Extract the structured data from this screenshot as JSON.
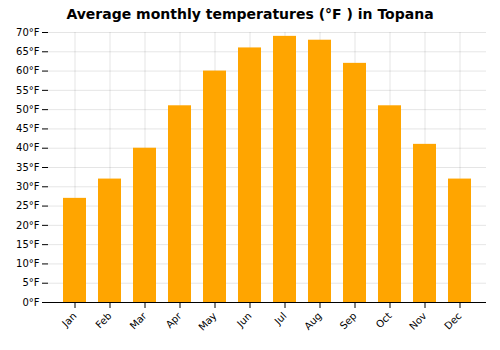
{
  "chart_data": {
    "type": "bar",
    "title": "Average monthly temperatures (°F ) in Topana",
    "categories": [
      "Jan",
      "Feb",
      "Mar",
      "Apr",
      "May",
      "Jun",
      "Jul",
      "Aug",
      "Sep",
      "Oct",
      "Nov",
      "Dec"
    ],
    "values": [
      27,
      32,
      40,
      51,
      60,
      66,
      69,
      68,
      62,
      51,
      41,
      32
    ],
    "color": "#FFA500",
    "ylim": [
      0,
      70
    ],
    "yticks": [
      {
        "value": 0,
        "label": "0°F"
      },
      {
        "value": 5,
        "label": "5°F"
      },
      {
        "value": 10,
        "label": "10°F"
      },
      {
        "value": 15,
        "label": "15°F"
      },
      {
        "value": 20,
        "label": "20°F"
      },
      {
        "value": 25,
        "label": "25°F"
      },
      {
        "value": 30,
        "label": "30°F"
      },
      {
        "value": 35,
        "label": "35°F"
      },
      {
        "value": 40,
        "label": "40°F"
      },
      {
        "value": 45,
        "label": "45°F"
      },
      {
        "value": 50,
        "label": "50°F"
      },
      {
        "value": 55,
        "label": "55°F"
      },
      {
        "value": 60,
        "label": "60°F"
      },
      {
        "value": 65,
        "label": "65°F"
      },
      {
        "value": 70,
        "label": "70°F"
      }
    ],
    "grid": true
  }
}
